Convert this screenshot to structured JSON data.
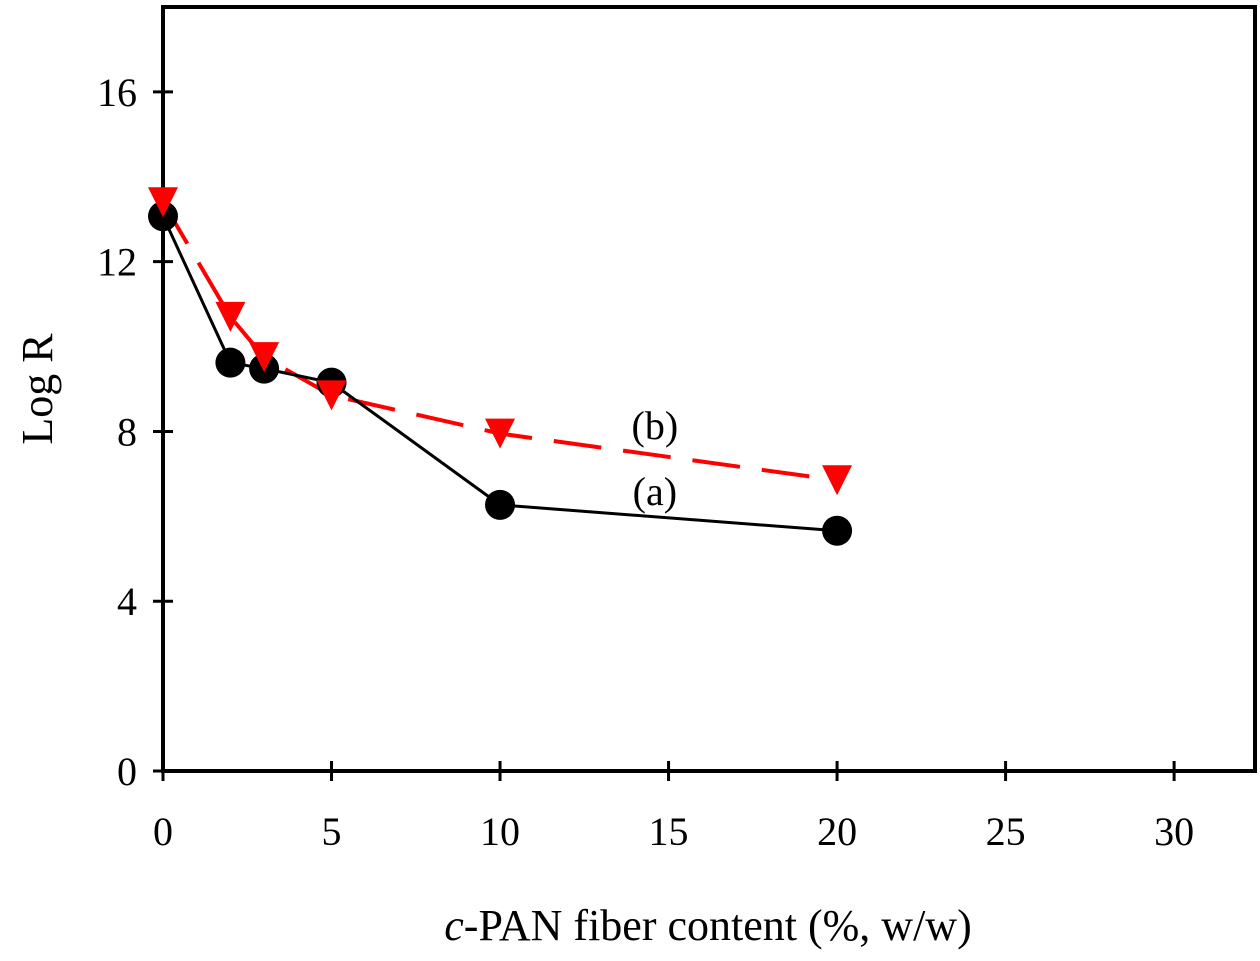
{
  "chart_data": {
    "type": "line",
    "title": "",
    "xlabel_prefix": "c",
    "xlabel_rest": "-PAN fiber content (%, w/w)",
    "xlabel": "c-PAN fiber content (%, w/w)",
    "ylabel": "Log R",
    "xlim": [
      0,
      32.4
    ],
    "ylim": [
      0,
      18
    ],
    "xticks": [
      0,
      5,
      10,
      15,
      20,
      25,
      30
    ],
    "yticks": [
      0,
      4,
      8,
      12,
      16
    ],
    "xtick_labels": [
      "0",
      "5",
      "10",
      "15",
      "20",
      "25",
      "30"
    ],
    "ytick_labels": [
      "0",
      "4",
      "8",
      "12",
      "16"
    ],
    "grid": false,
    "legend": "none",
    "series": [
      {
        "name": "(a)",
        "marker": "circle",
        "line": "solid",
        "color": "#000000",
        "x": [
          0,
          2,
          3,
          5,
          10,
          20
        ],
        "y": [
          13.07,
          9.62,
          9.48,
          9.15,
          6.27,
          5.66
        ]
      },
      {
        "name": "(b)",
        "marker": "triangle-down",
        "line": "dashed",
        "color": "#ff0000",
        "x": [
          0,
          2,
          3,
          5,
          10,
          20
        ],
        "y": [
          13.4,
          10.7,
          9.75,
          8.85,
          7.95,
          6.85
        ]
      }
    ],
    "annotations": [
      {
        "text": "(b)",
        "x": 14,
        "y": 8.15
      },
      {
        "text": "(a)",
        "x": 14,
        "y": 6.6
      }
    ]
  }
}
